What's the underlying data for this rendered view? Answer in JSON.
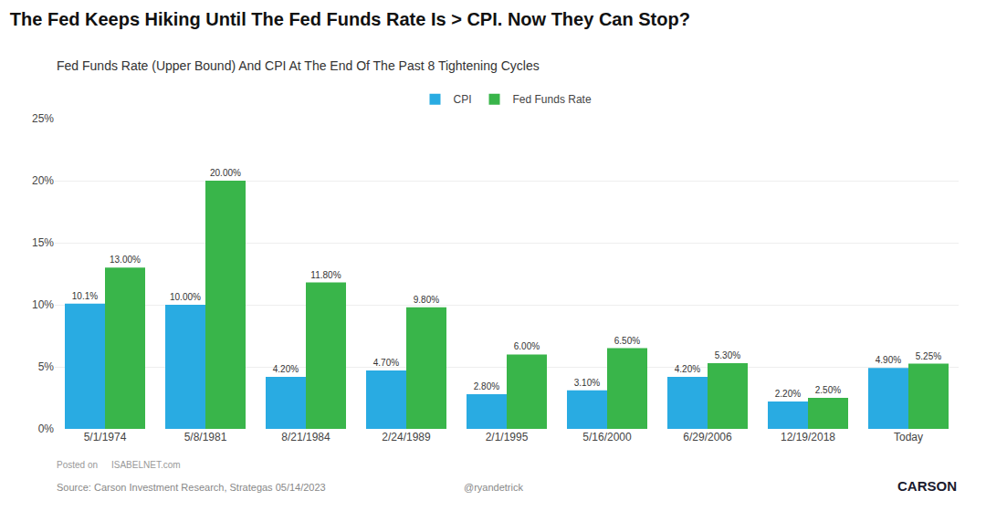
{
  "chart_data": {
    "type": "bar",
    "title": "The Fed Keeps Hiking Until The Fed Funds Rate Is > CPI. Now They Can Stop?",
    "subtitle": "Fed Funds Rate (Upper Bound) And CPI At The End Of The Past 8 Tightening Cycles",
    "categories": [
      "5/1/1974",
      "5/8/1981",
      "8/21/1984",
      "2/24/1989",
      "2/1/1995",
      "5/16/2000",
      "6/29/2006",
      "12/19/2018",
      "Today"
    ],
    "series": [
      {
        "name": "CPI",
        "color": "#29ABE2",
        "values": [
          10.1,
          10.0,
          4.2,
          4.7,
          2.8,
          3.1,
          4.2,
          2.2,
          4.9
        ],
        "value_labels": [
          "10.1%",
          "10.00%",
          "4.20%",
          "4.70%",
          "2.80%",
          "3.10%",
          "4.20%",
          "2.20%",
          "4.90%"
        ]
      },
      {
        "name": "Fed Funds Rate",
        "color": "#39B54A",
        "values": [
          13.0,
          20.0,
          11.8,
          9.8,
          6.0,
          6.5,
          5.3,
          2.5,
          5.25
        ],
        "value_labels": [
          "13.00%",
          "20.00%",
          "11.80%",
          "9.80%",
          "6.00%",
          "6.50%",
          "5.30%",
          "2.50%",
          "5.25%"
        ]
      }
    ],
    "ylim": [
      0,
      25
    ],
    "yticks": [
      {
        "value": 0,
        "label": "0%"
      },
      {
        "value": 5,
        "label": "5%"
      },
      {
        "value": 10,
        "label": "10%"
      },
      {
        "value": 15,
        "label": "15%"
      },
      {
        "value": 20,
        "label": "20%"
      },
      {
        "value": 25,
        "label": "25%"
      }
    ],
    "grid": true,
    "legend": "top",
    "data_labels": true,
    "annotations": [
      "Source: Carson Investment Research, Strategas 05/14/2023",
      "@ryandetrick",
      "Posted on",
      "ISABELNET.com",
      "CARSON"
    ]
  }
}
